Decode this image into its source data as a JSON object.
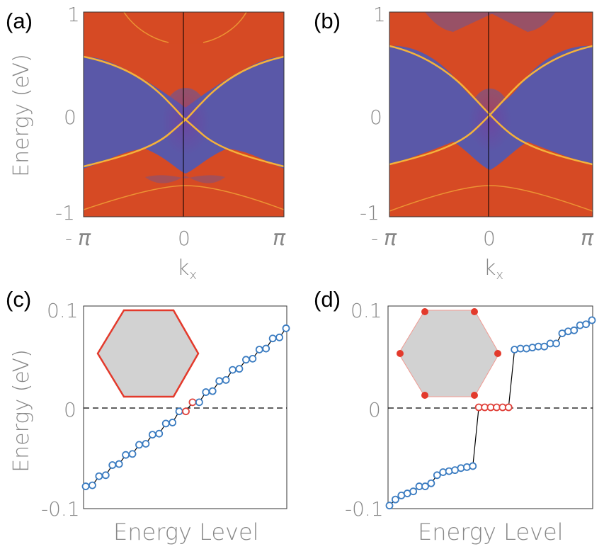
{
  "colors": {
    "band_fill": "#d64a24",
    "bulk_bg": "#5a58a8",
    "edge_state": "#f5b23a",
    "open_marker_blue": "#3b7cc1",
    "open_marker_red": "#e0413a",
    "hexagon_edge": "#e33a2c",
    "hexagon_fill": "#d2d2d2"
  },
  "chart_data": [
    {
      "panel": "(a)",
      "type": "heatmap",
      "xlabel": "kx",
      "ylabel": "Energy (eV)",
      "x_ticks": [
        "- π",
        "0",
        "π"
      ],
      "y_ticks": [
        "1",
        "0",
        "-1"
      ],
      "xlim": [
        -3.1416,
        3.1416
      ],
      "ylim": [
        -1,
        1
      ],
      "edge_state_crossing_energy": -0.05
    },
    {
      "panel": "(b)",
      "type": "heatmap",
      "xlabel": "kx",
      "ylabel": "",
      "x_ticks": [
        "- π",
        "0",
        "π"
      ],
      "y_ticks": [
        "1",
        "0",
        "-1"
      ],
      "xlim": [
        -3.1416,
        3.1416
      ],
      "ylim": [
        -1,
        1
      ],
      "edge_state_crossing_energy": 0.0
    },
    {
      "panel": "(c)",
      "type": "scatter",
      "xlabel": "Energy Level",
      "ylabel": "Energy (eV)",
      "y_ticks": [
        "0.1",
        "0",
        "-0.1"
      ],
      "ylim": [
        -0.1,
        0.1
      ],
      "energy_zero_reference": "dashed",
      "inset": "hexagon-edge-highlighted",
      "levels_blue": [
        -0.078,
        -0.077,
        -0.068,
        -0.067,
        -0.057,
        -0.056,
        -0.047,
        -0.046,
        -0.037,
        -0.036,
        -0.027,
        -0.026,
        -0.016,
        -0.015,
        -0.004
      ],
      "levels_red": [
        -0.004,
        0.005
      ],
      "levels_blue_upper": [
        0.005,
        0.015,
        0.016,
        0.026,
        0.027,
        0.037,
        0.038,
        0.047,
        0.048,
        0.057,
        0.058,
        0.068,
        0.069,
        0.078
      ]
    },
    {
      "panel": "(d)",
      "type": "scatter",
      "xlabel": "Energy Level",
      "ylabel": "",
      "y_ticks": [
        "0.1",
        "0",
        "-0.1"
      ],
      "ylim": [
        -0.1,
        0.1
      ],
      "energy_zero_reference": "dashed",
      "inset": "hexagon-corner-highlighted",
      "levels_blue_lower": [
        -0.097,
        -0.091,
        -0.087,
        -0.085,
        -0.083,
        -0.078,
        -0.078,
        -0.075,
        -0.067,
        -0.064,
        -0.063,
        -0.062,
        -0.06,
        -0.059,
        -0.058
      ],
      "levels_red": [
        0.0,
        0.0,
        0.0,
        0.0,
        0.0,
        0.0
      ],
      "levels_blue_upper": [
        0.057,
        0.058,
        0.058,
        0.059,
        0.06,
        0.06,
        0.063,
        0.063,
        0.073,
        0.075,
        0.076,
        0.081,
        0.082,
        0.086
      ]
    }
  ],
  "labels": {
    "a": "(a)",
    "b": "(b)",
    "c": "(c)",
    "d": "(d)",
    "energy_ev": "Energy (eV)",
    "energy_level": "Energy Level",
    "kx_k": "k",
    "kx_sub": "x",
    "pi": "π",
    "neg": "-",
    "zero": "0",
    "one": "1",
    "minus_one": "-1",
    "p01": "0.1",
    "m01": "-0.1"
  }
}
